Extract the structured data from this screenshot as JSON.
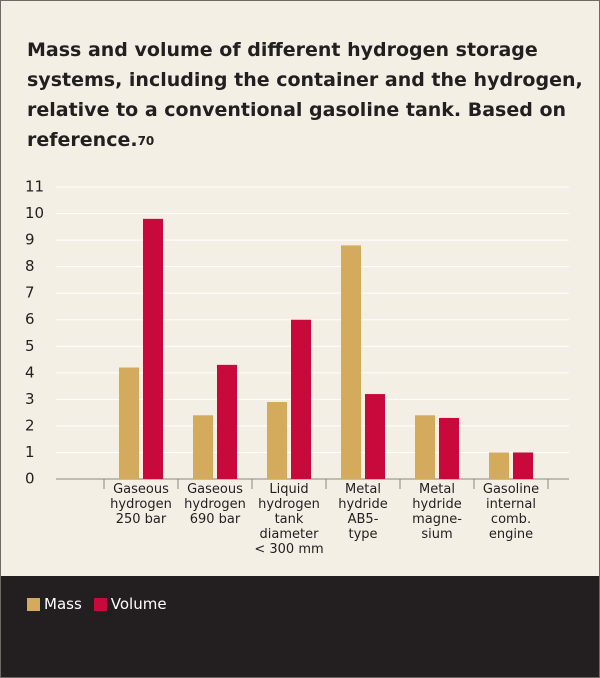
{
  "chart_data": {
    "type": "bar",
    "title": "Mass and volume of different hydrogen storage systems, including the container and the hydrogen, relative to a conventional gasoline tank. Based on reference.",
    "reference": "70",
    "categories": [
      "Gaseous\nhydrogen\n250 bar",
      "Gaseous\nhydrogen\n690 bar",
      "Liquid\nhydrogen\ntank\ndiameter\n< 300 mm",
      "Metal\nhydride\nAB5-\ntype",
      "Metal\nhydride\nmagne-\nsium",
      "Gasoline\ninternal\ncomb.\nengine"
    ],
    "series": [
      {
        "name": "Mass",
        "color": "#d4ab5c",
        "values": [
          4.2,
          2.4,
          2.9,
          8.8,
          2.4,
          1.0
        ]
      },
      {
        "name": "Volume",
        "color": "#c8093b",
        "values": [
          9.8,
          4.3,
          6.0,
          3.2,
          2.3,
          1.0
        ]
      }
    ],
    "ylim": [
      0,
      11
    ],
    "yticks": [
      0,
      1,
      2,
      3,
      4,
      5,
      6,
      7,
      8,
      9,
      10,
      11
    ],
    "grid": true,
    "legend": "bottom"
  }
}
